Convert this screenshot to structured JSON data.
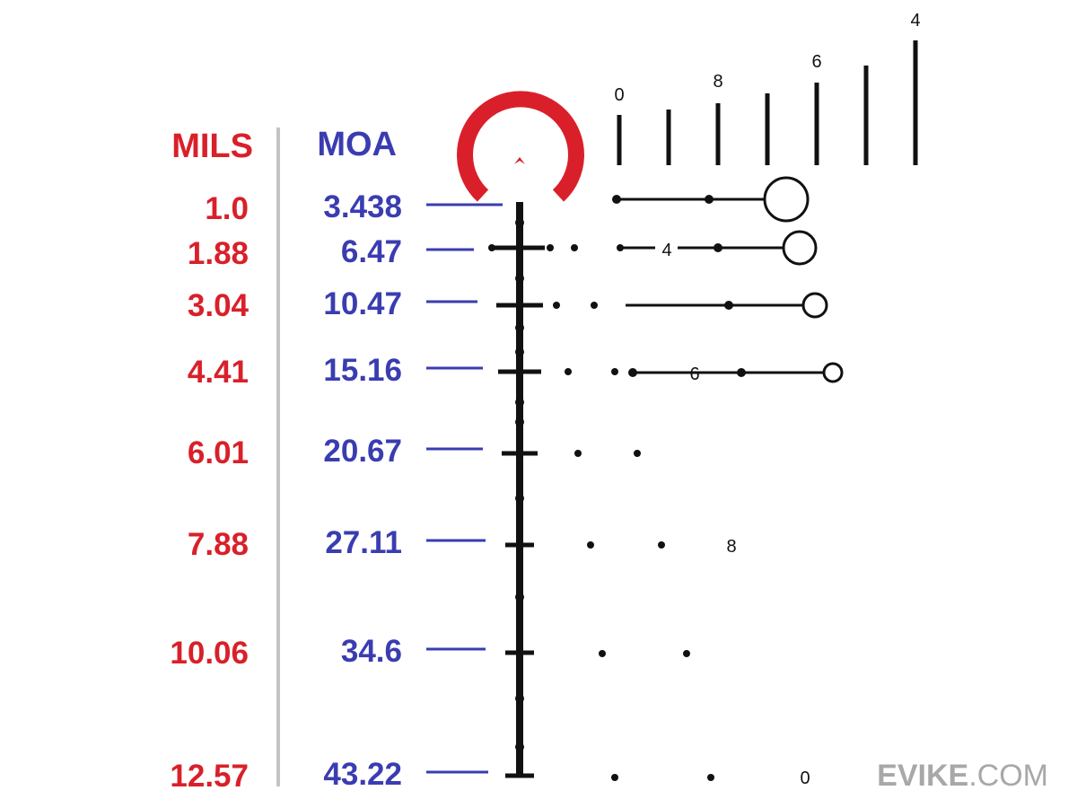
{
  "colors": {
    "mils": "#d9202a",
    "moa": "#3a3db0",
    "reticle": "#111111",
    "horseshoe": "#d9202a",
    "divider": "#c4c4c4",
    "brand": "#a8a8a8"
  },
  "headers": {
    "mils": "MILS",
    "moa": "MOA"
  },
  "table": {
    "rows": [
      {
        "mils": "1.0",
        "moa": "3.438"
      },
      {
        "mils": "1.88",
        "moa": "6.47"
      },
      {
        "mils": "3.04",
        "moa": "10.47"
      },
      {
        "mils": "4.41",
        "moa": "15.16"
      },
      {
        "mils": "6.01",
        "moa": "20.67"
      },
      {
        "mils": "7.88",
        "moa": "27.11"
      },
      {
        "mils": "10.06",
        "moa": "34.6"
      },
      {
        "mils": "12.57",
        "moa": "43.22"
      }
    ]
  },
  "rangefinder_labels": [
    "0",
    "8",
    "6",
    "4"
  ],
  "lead_labels": [
    "4",
    "6",
    "8",
    "0"
  ],
  "brand": {
    "bold": "EVIKE",
    "rest": ".COM"
  }
}
